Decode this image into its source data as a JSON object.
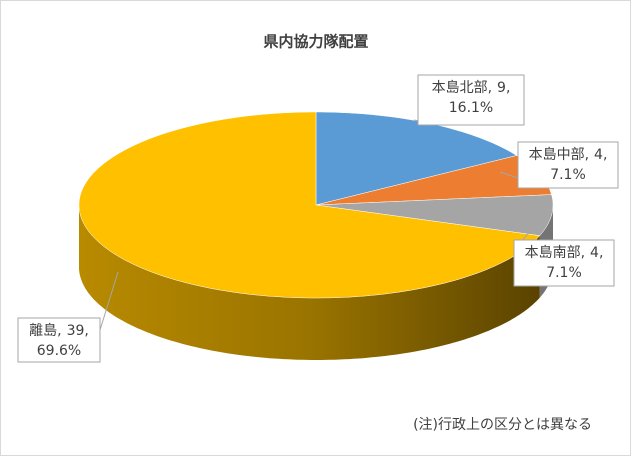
{
  "chart_data": {
    "type": "pie3d",
    "title": "県内協力隊配置",
    "categories": [
      "本島北部",
      "本島中部",
      "本島南部",
      "離島"
    ],
    "values": [
      9,
      4,
      4,
      39
    ],
    "percents": [
      {
        "value": 16.1,
        "label": "16.1%"
      },
      {
        "value": 7.1,
        "label": "7.1%"
      },
      {
        "value": 7.1,
        "label": "7.1%"
      },
      {
        "value": 69.6,
        "label": "69.6%"
      }
    ],
    "colors": [
      "#5b9bd5",
      "#ed7d31",
      "#a5a5a5",
      "#ffc000"
    ],
    "label_separator": ",",
    "note": "(注)行政上の区分とは異なる"
  }
}
